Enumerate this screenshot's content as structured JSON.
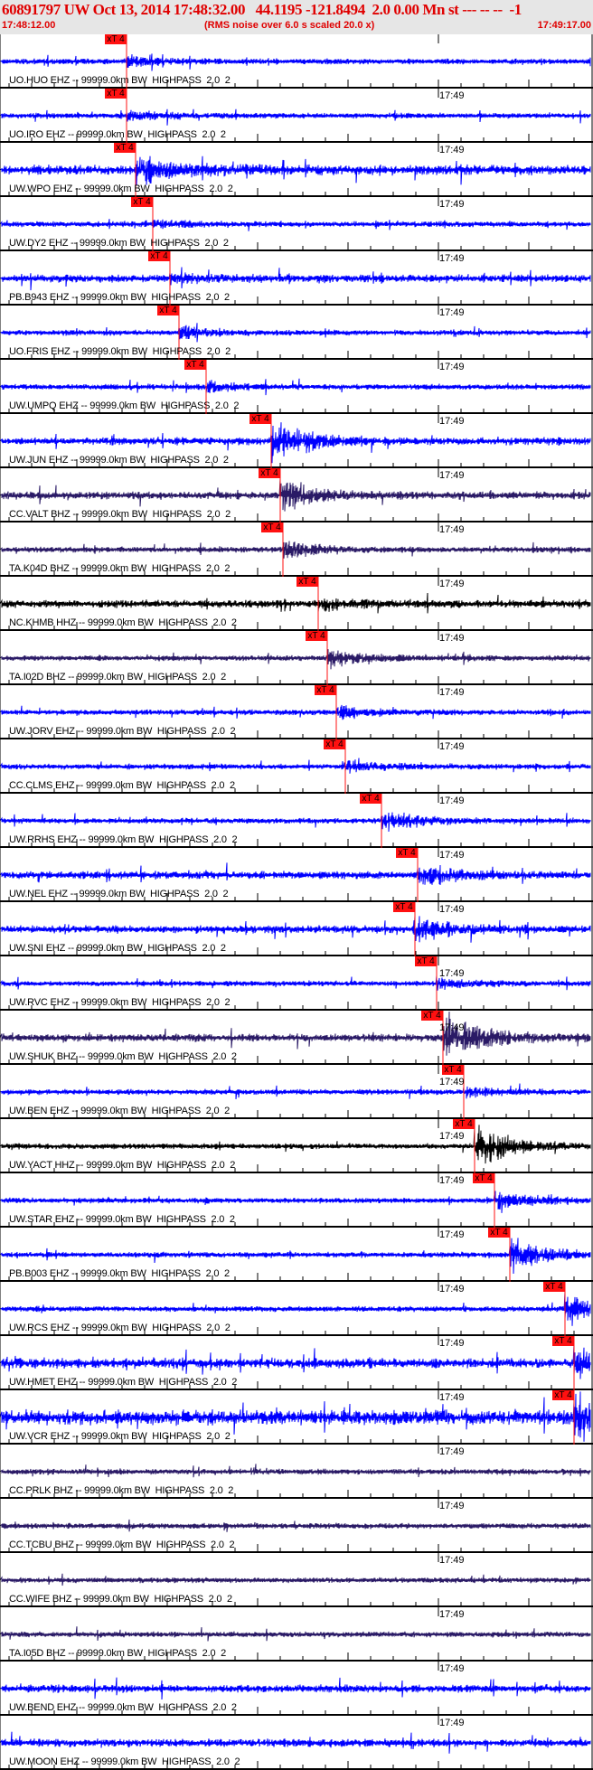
{
  "header": {
    "title": "60891797 UW Oct 13, 2014 17:48:32.00   44.1195 -121.8494  2.0 0.00 Mn st --- -- --  -1",
    "start_time": "17:48:12.00",
    "rms_note": "(RMS noise over 6.0 s scaled 20.0 x)",
    "end_time": "17:49:17.00"
  },
  "time_tick_label": "17:49",
  "pick_label": "xT 4",
  "colors": {
    "header_text": "#e00000",
    "pick": "#ff1010",
    "blue": "#0000ff",
    "purple": "#2a1a66",
    "black": "#000000"
  },
  "traces": [
    {
      "label": "UO.HUO EHZ -- 99999.0km BW  HIGHPASS  2.0  2",
      "color": "#0000ff",
      "pick": true
    },
    {
      "label": "UO.IRO EHZ -- 99999.0km BW  HIGHPASS  2.0  2",
      "color": "#0000ff",
      "pick": true
    },
    {
      "label": "UW.WPO EHZ -- 99999.0km BW  HIGHPASS  2.0  2",
      "color": "#0000ff",
      "pick": true
    },
    {
      "label": "UW.DY2 EHZ -- 99999.0km BW  HIGHPASS  2.0  2",
      "color": "#0000ff",
      "pick": true
    },
    {
      "label": "PB.B943 EHZ -- 99999.0km BW  HIGHPASS  2.0  2",
      "color": "#0000ff",
      "pick": true
    },
    {
      "label": "UO.FRIS EHZ -- 99999.0km BW  HIGHPASS  2.0  2",
      "color": "#0000ff",
      "pick": true
    },
    {
      "label": "UW.UMPQ EHZ -- 99999.0km BW  HIGHPASS  2.0  2",
      "color": "#0000ff",
      "pick": true
    },
    {
      "label": "UW.JUN EHZ -- 99999.0km BW  HIGHPASS  2.0  2",
      "color": "#0000ff",
      "pick": true
    },
    {
      "label": "CC.VALT BHZ -- 99999.0km BW  HIGHPASS  2.0  2",
      "color": "#2a1a66",
      "pick": true
    },
    {
      "label": "TA.K04D BHZ -- 99999.0km BW  HIGHPASS  2.0  2",
      "color": "#2a1a66",
      "pick": true
    },
    {
      "label": "NC.KHMB HHZ -- 99999.0km BW  HIGHPASS  2.0  2",
      "color": "#000000",
      "pick": true
    },
    {
      "label": "TA.I02D BHZ -- 99999.0km BW  HIGHPASS  2.0  2",
      "color": "#2a1a66",
      "pick": true
    },
    {
      "label": "UW.JORV EHZ -- 99999.0km BW  HIGHPASS  2.0  2",
      "color": "#0000ff",
      "pick": true
    },
    {
      "label": "CC.CLMS EHZ -- 99999.0km BW  HIGHPASS  2.0  2",
      "color": "#0000ff",
      "pick": true
    },
    {
      "label": "UW.RRHS EHZ -- 99999.0km BW  HIGHPASS  2.0  2",
      "color": "#0000ff",
      "pick": true
    },
    {
      "label": "UW.NEL EHZ -- 99999.0km BW  HIGHPASS  2.0  2",
      "color": "#0000ff",
      "pick": true
    },
    {
      "label": "UW.SNI EHZ -- 99999.0km BW  HIGHPASS  2.0  2",
      "color": "#0000ff",
      "pick": true
    },
    {
      "label": "UW.RVC EHZ -- 99999.0km BW  HIGHPASS  2.0  2",
      "color": "#0000ff",
      "pick": true
    },
    {
      "label": "UW.SHUK BHZ -- 99999.0km BW  HIGHPASS  2.0  2",
      "color": "#2a1a66",
      "pick": true
    },
    {
      "label": "UW.BEN EHZ -- 99999.0km BW  HIGHPASS  2.0  2",
      "color": "#0000ff",
      "pick": true
    },
    {
      "label": "UW.YACT HHZ -- 99999.0km BW  HIGHPASS  2.0  2",
      "color": "#000000",
      "pick": true
    },
    {
      "label": "UW.STAR EHZ -- 99999.0km BW  HIGHPASS  2.0  2",
      "color": "#0000ff",
      "pick": true
    },
    {
      "label": "PB.B003 EHZ -- 99999.0km BW  HIGHPASS  2.0  2",
      "color": "#0000ff",
      "pick": true
    },
    {
      "label": "UW.RCS EHZ -- 99999.0km BW  HIGHPASS  2.0  2",
      "color": "#0000ff",
      "pick": true
    },
    {
      "label": "UW.HMET EHZ -- 99999.0km BW  HIGHPASS  2.0  2",
      "color": "#0000ff",
      "pick": true
    },
    {
      "label": "UW.VCR EHZ -- 99999.0km BW  HIGHPASS  2.0  2",
      "color": "#0000ff",
      "pick": true
    },
    {
      "label": "CC.PRLK BHZ -- 99999.0km BW  HIGHPASS  2.0  2",
      "color": "#2a1a66",
      "pick": false
    },
    {
      "label": "CC.TCBU BHZ -- 99999.0km BW  HIGHPASS  2.0  2",
      "color": "#2a1a66",
      "pick": false
    },
    {
      "label": "CC.WIFE BHZ -- 99999.0km BW  HIGHPASS  2.0  2",
      "color": "#2a1a66",
      "pick": false
    },
    {
      "label": "TA.I05D BHZ -- 99999.0km BW  HIGHPASS  2.0  2",
      "color": "#2a1a66",
      "pick": false
    },
    {
      "label": "UW.BEND EHZ -- 99999.0km BW  HIGHPASS  2.0  2",
      "color": "#0000ff",
      "pick": false
    },
    {
      "label": "UW.MOON EHZ -- 99999.0km BW  HIGHPASS  2.0  2",
      "color": "#0000ff",
      "pick": false
    }
  ]
}
